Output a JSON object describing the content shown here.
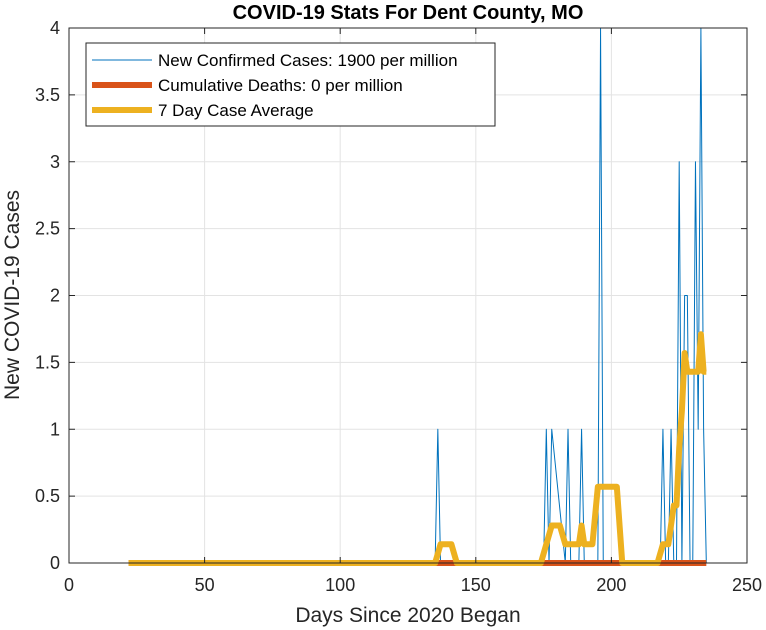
{
  "chart_data": {
    "type": "line",
    "title": "COVID-19 Stats For Dent County, MO",
    "xlabel": "Days Since 2020 Began",
    "ylabel": "New COVID-19 Cases",
    "xlim": [
      0,
      250
    ],
    "ylim": [
      0,
      4
    ],
    "xticks": [
      0,
      50,
      100,
      150,
      200,
      250
    ],
    "yticks": [
      0,
      0.5,
      1,
      1.5,
      2,
      2.5,
      3,
      3.5,
      4
    ],
    "xtick_labels": [
      "0",
      "50",
      "100",
      "150",
      "200",
      "250"
    ],
    "ytick_labels": [
      "0",
      "0.5",
      "1",
      "1.5",
      "2",
      "2.5",
      "3",
      "3.5",
      "4"
    ],
    "grid": true,
    "legend_position": "top-left",
    "series": [
      {
        "name": "New Confirmed Cases: 1900 per million",
        "color": "#0072BD",
        "x": [
          22,
          135,
          136,
          137,
          175,
          176,
          177,
          178,
          183,
          184,
          185,
          188,
          189,
          190,
          195,
          196,
          197,
          218,
          219,
          220,
          221,
          222,
          223,
          224,
          225,
          226,
          227,
          228,
          229,
          230,
          231,
          232,
          233,
          234,
          235
        ],
        "y": [
          0,
          0,
          1,
          0,
          0,
          1,
          0,
          1,
          0,
          1,
          0,
          0,
          1,
          0,
          0,
          4,
          0,
          0,
          1,
          0,
          0,
          1,
          0,
          0,
          3,
          0,
          2,
          2,
          0,
          0,
          3,
          1,
          4,
          1,
          0
        ]
      },
      {
        "name": "Cumulative Deaths: 0 per million",
        "color": "#D95319",
        "x": [
          22,
          235
        ],
        "y": [
          0,
          0
        ]
      },
      {
        "name": "7 Day Case Average",
        "color": "#EDB120",
        "x": [
          22,
          135,
          137,
          141,
          143,
          174,
          176,
          178,
          181,
          183,
          188,
          189,
          190,
          193,
          195,
          197,
          202,
          204,
          217,
          219,
          221,
          223,
          224,
          225,
          226,
          227,
          228,
          229,
          230,
          231,
          232,
          233,
          234,
          235
        ],
        "y": [
          0,
          0,
          0.14,
          0.14,
          0,
          0,
          0.14,
          0.28,
          0.28,
          0.14,
          0.14,
          0.28,
          0.14,
          0.14,
          0.57,
          0.57,
          0.57,
          0,
          0,
          0.14,
          0.14,
          0.43,
          0.43,
          0.86,
          1.14,
          1.57,
          1.43,
          1.43,
          1.43,
          1.43,
          1.43,
          1.71,
          1.43,
          1.43
        ]
      }
    ]
  }
}
